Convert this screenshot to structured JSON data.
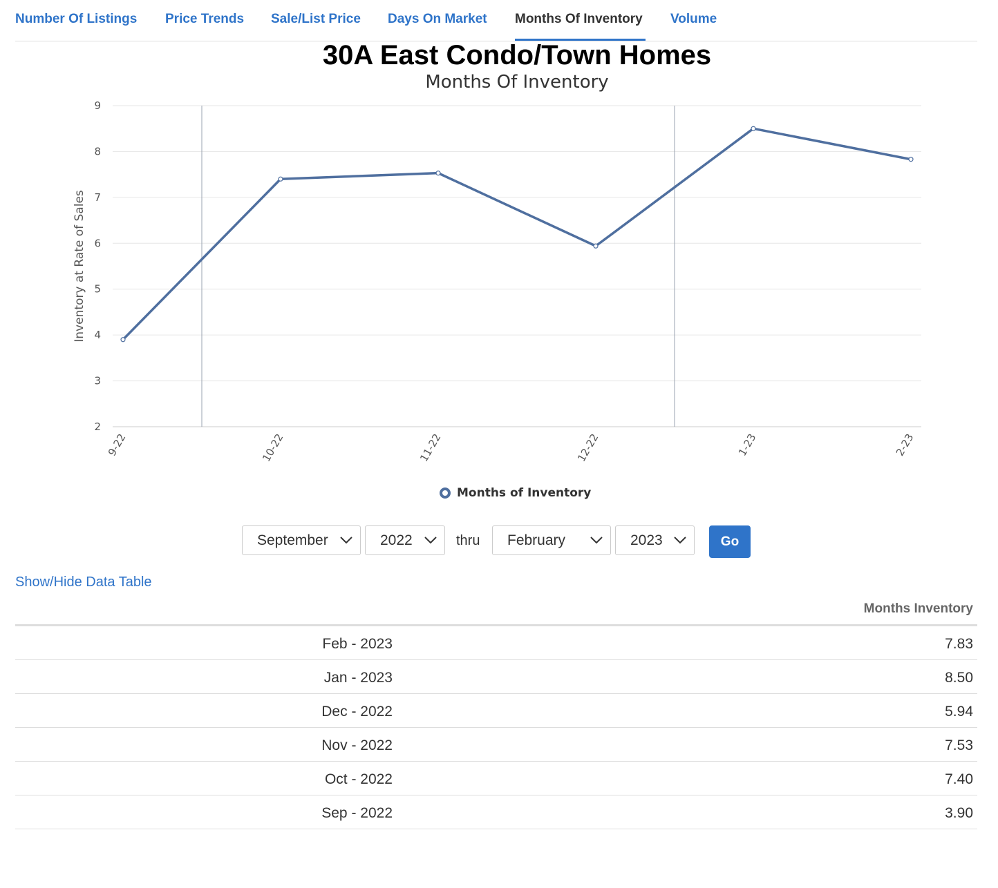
{
  "tabs": [
    {
      "label": "Number Of Listings",
      "active": false
    },
    {
      "label": "Price Trends",
      "active": false
    },
    {
      "label": "Sale/List Price",
      "active": false
    },
    {
      "label": "Days On Market",
      "active": false
    },
    {
      "label": "Months Of Inventory",
      "active": true
    },
    {
      "label": "Volume",
      "active": false
    }
  ],
  "chart_data": {
    "type": "line",
    "title": "30A East Condo/Town Homes",
    "subtitle": "Months Of Inventory",
    "ylabel": "Inventory at Rate of Sales",
    "xlabel": "",
    "categories": [
      "9-22",
      "10-22",
      "11-22",
      "12-22",
      "1-23",
      "2-23"
    ],
    "series": [
      {
        "name": "Months of Inventory",
        "values": [
          3.9,
          7.4,
          7.53,
          5.94,
          8.5,
          7.83
        ],
        "color": "#4f6f9f"
      }
    ],
    "ylim": [
      2,
      9
    ],
    "yticks": [
      2,
      3,
      4,
      5,
      6,
      7,
      8,
      9
    ],
    "grid": true,
    "legend": "bottom-center"
  },
  "controls": {
    "start_month": "September",
    "start_year": "2022",
    "thru_label": "thru",
    "end_month": "February",
    "end_year": "2023",
    "go_label": "Go"
  },
  "toggle_label": "Show/Hide Data Table",
  "table": {
    "header": "Months Inventory",
    "rows": [
      {
        "date": "Feb - 2023",
        "value": "7.83"
      },
      {
        "date": "Jan - 2023",
        "value": "8.50"
      },
      {
        "date": "Dec - 2022",
        "value": "5.94"
      },
      {
        "date": "Nov - 2022",
        "value": "7.53"
      },
      {
        "date": "Oct - 2022",
        "value": "7.40"
      },
      {
        "date": "Sep - 2022",
        "value": "3.90"
      }
    ]
  },
  "colors": {
    "accent": "#2f74c9",
    "series": "#4f6f9f",
    "grid": "#e6e6e6"
  }
}
